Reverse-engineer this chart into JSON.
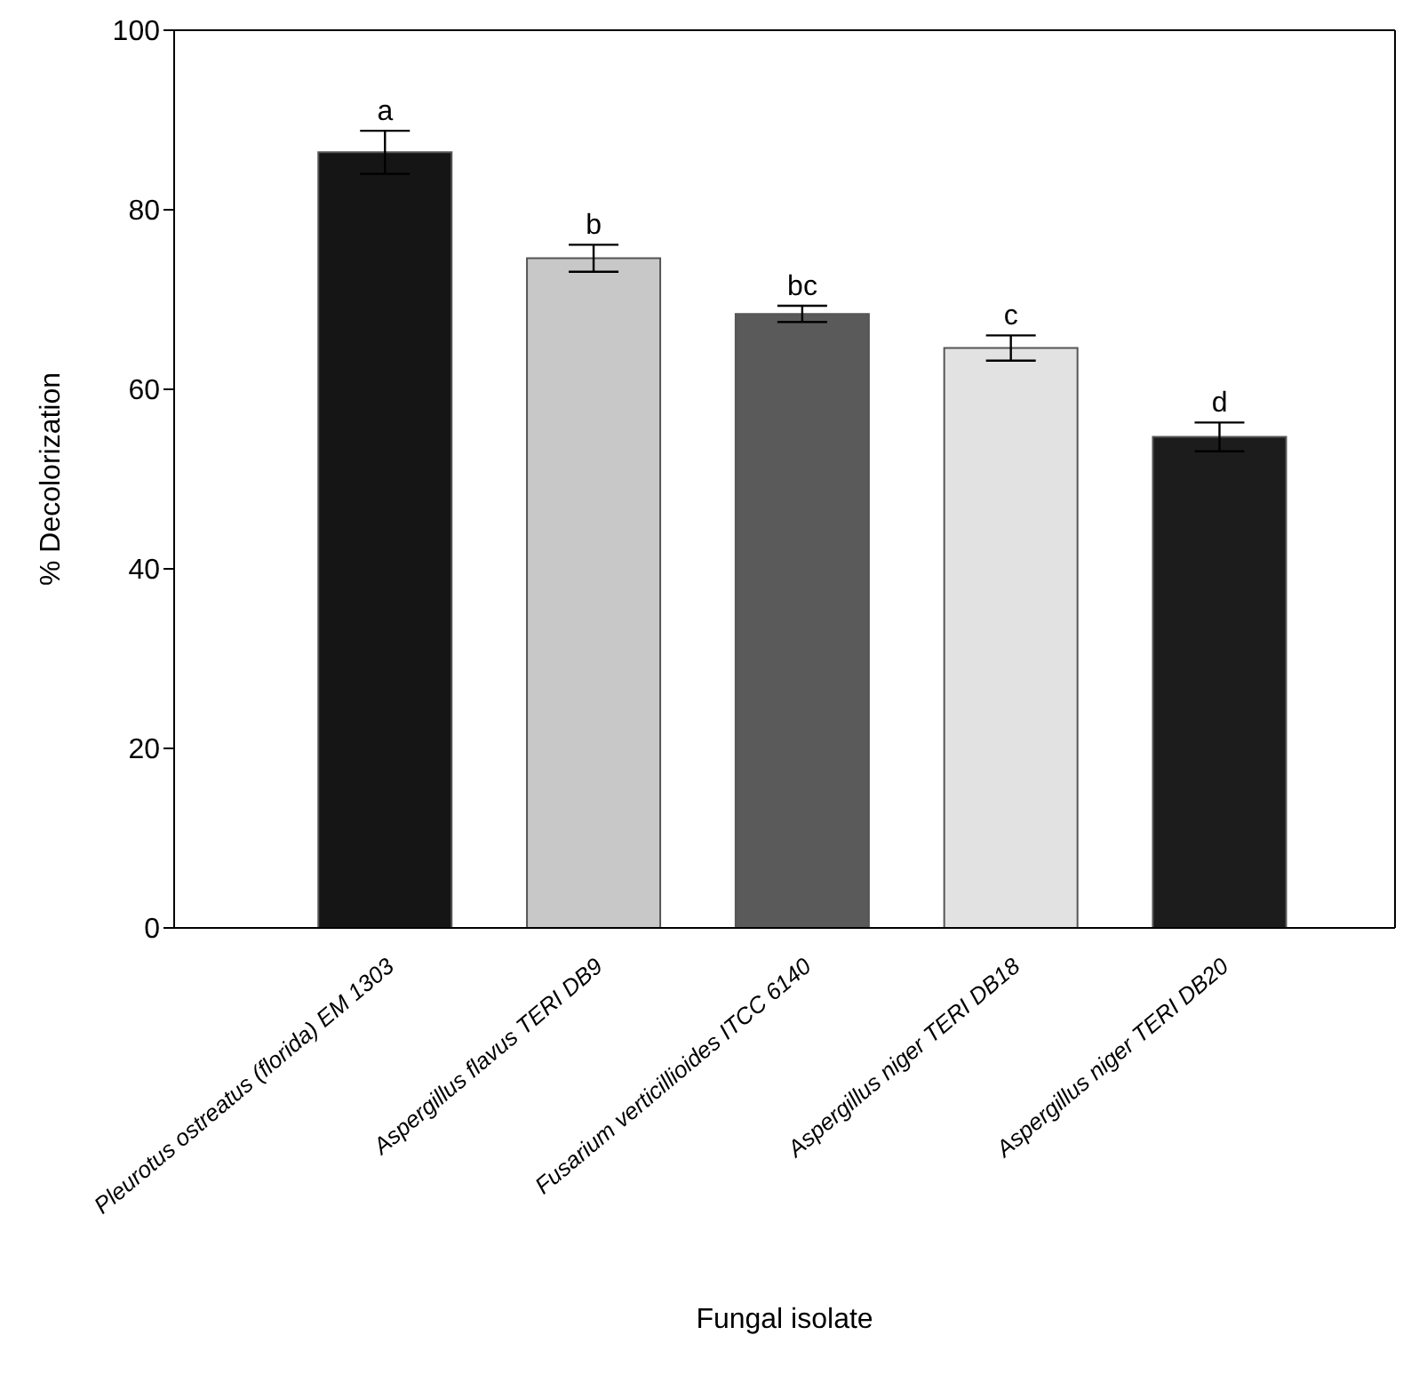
{
  "chart_data": {
    "type": "bar",
    "xlabel": "Fungal isolate",
    "ylabel": "% Decolorization",
    "categories": [
      "Pleurotus ostreatus (florida) EM 1303",
      "Aspergillus flavus TERI DB9",
      "Fusarium verticillioides ITCC 6140",
      "Aspergillus niger TERI DB18",
      "Aspergillus niger TERI DB20"
    ],
    "values": [
      86.4,
      74.6,
      68.4,
      64.6,
      54.7
    ],
    "errors": [
      2.4,
      1.5,
      0.9,
      1.4,
      1.6
    ],
    "colors": [
      "#151515",
      "#c8c8c8",
      "#5a5a5a",
      "#e2e2e2",
      "#1c1c1c"
    ],
    "ylim": [
      0,
      100
    ],
    "yticks": [
      0,
      20,
      40,
      60,
      80,
      100
    ],
    "grid": false,
    "legend": false,
    "annotations": [
      {
        "text": "a",
        "x": "Pleurotus ostreatus (florida) EM 1303",
        "y": 88.8
      },
      {
        "text": "b",
        "x": "Aspergillus flavus TERI DB9",
        "y": 76.1
      },
      {
        "text": "bc",
        "x": "Fusarium verticillioides ITCC 6140",
        "y": 69.3
      },
      {
        "text": "c",
        "x": "Aspergillus niger TERI DB18",
        "y": 66.0
      },
      {
        "text": "d",
        "x": "Aspergillus niger TERI DB20",
        "y": 56.3
      }
    ]
  }
}
